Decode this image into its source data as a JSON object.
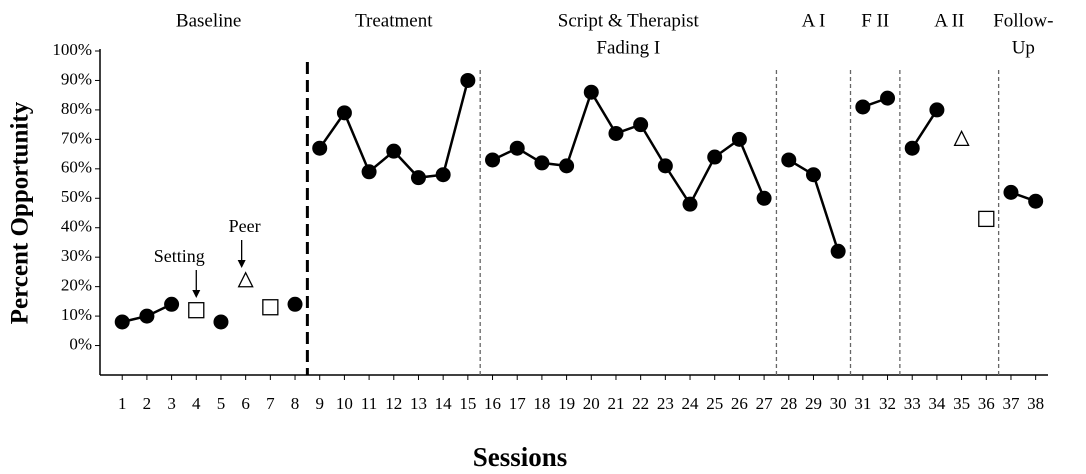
{
  "chart_data": {
    "type": "line",
    "x_label": "Sessions",
    "y_label": "Percent Opportunity",
    "x": [
      1,
      2,
      3,
      4,
      5,
      6,
      7,
      8,
      9,
      10,
      11,
      12,
      13,
      14,
      15,
      16,
      17,
      18,
      19,
      20,
      21,
      22,
      23,
      24,
      25,
      26,
      27,
      28,
      29,
      30,
      31,
      32,
      33,
      34,
      35,
      36,
      37,
      38
    ],
    "xlim": [
      0.1,
      38.5
    ],
    "xticks": [
      1,
      2,
      3,
      4,
      5,
      6,
      7,
      8,
      9,
      10,
      11,
      12,
      13,
      14,
      15,
      16,
      17,
      18,
      19,
      20,
      21,
      22,
      23,
      24,
      25,
      26,
      27,
      28,
      29,
      30,
      31,
      32,
      33,
      34,
      35,
      36,
      37,
      38
    ],
    "ylim": [
      -10,
      100
    ],
    "yticks": [
      {
        "value": 0,
        "label": "0%"
      },
      {
        "value": 10,
        "label": "10%"
      },
      {
        "value": 20,
        "label": "20%"
      },
      {
        "value": 30,
        "label": "30%"
      },
      {
        "value": 40,
        "label": "40%"
      },
      {
        "value": 50,
        "label": "50%"
      },
      {
        "value": 60,
        "label": "60%"
      },
      {
        "value": 70,
        "label": "70%"
      },
      {
        "value": 80,
        "label": "80%"
      },
      {
        "value": 90,
        "label": "90%"
      },
      {
        "value": 100,
        "label": "100%"
      }
    ],
    "series": [
      {
        "marker": "circle",
        "color": "#000000",
        "connected": true,
        "values": [
          8,
          10,
          14,
          null,
          8,
          null,
          null,
          14,
          67,
          79,
          59,
          66,
          57,
          58,
          90,
          63,
          67,
          62,
          61,
          86,
          72,
          75,
          61,
          48,
          64,
          70,
          50,
          63,
          58,
          32,
          81,
          84,
          67,
          80,
          null,
          null,
          52,
          49
        ]
      },
      {
        "marker": "square",
        "color": "#000000",
        "connected": false,
        "values": [
          null,
          null,
          null,
          12,
          null,
          null,
          13,
          null,
          null,
          null,
          null,
          null,
          null,
          null,
          null,
          null,
          null,
          null,
          null,
          null,
          null,
          null,
          null,
          null,
          null,
          null,
          null,
          null,
          null,
          null,
          null,
          null,
          null,
          null,
          null,
          43,
          null,
          null
        ]
      },
      {
        "marker": "triangle",
        "color": "#000000",
        "connected": false,
        "values": [
          null,
          null,
          null,
          null,
          null,
          22,
          null,
          null,
          null,
          null,
          null,
          null,
          null,
          null,
          null,
          null,
          null,
          null,
          null,
          null,
          null,
          null,
          null,
          null,
          null,
          null,
          null,
          null,
          null,
          null,
          null,
          null,
          null,
          null,
          70,
          null,
          null,
          null
        ]
      }
    ],
    "phase_lines": [
      8.5,
      15.5,
      27.5,
      30.5,
      32.5,
      36.5
    ],
    "phases": [
      {
        "lines": [
          "Baseline"
        ]
      },
      {
        "lines": [
          "Treatment"
        ]
      },
      {
        "lines": [
          "Script & Therapist",
          "Fading I"
        ]
      },
      {
        "lines": [
          "A I"
        ]
      },
      {
        "lines": [
          "F II"
        ]
      },
      {
        "lines": [
          "A II"
        ]
      },
      {
        "lines": [
          "Follow-",
          "Up"
        ]
      }
    ],
    "annotations": [
      {
        "text": "Setting",
        "x": 4
      },
      {
        "text": "Peer",
        "x": 6
      }
    ]
  }
}
